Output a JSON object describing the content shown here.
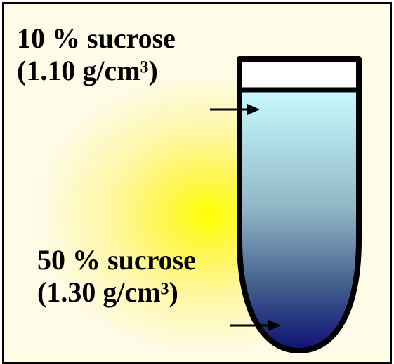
{
  "labels": {
    "top_line1": "10 % sucrose",
    "top_line2": "(1.10 g/cm³)",
    "bottom_line1": "50 % sucrose",
    "bottom_line2": "(1.30 g/cm³)"
  },
  "colors": {
    "gradient_top": "#c9fbff",
    "gradient_middle": "#7f9fb8",
    "gradient_bottom": "#0a0a72",
    "background": "#fefbe6",
    "glow": "#ffff00"
  }
}
